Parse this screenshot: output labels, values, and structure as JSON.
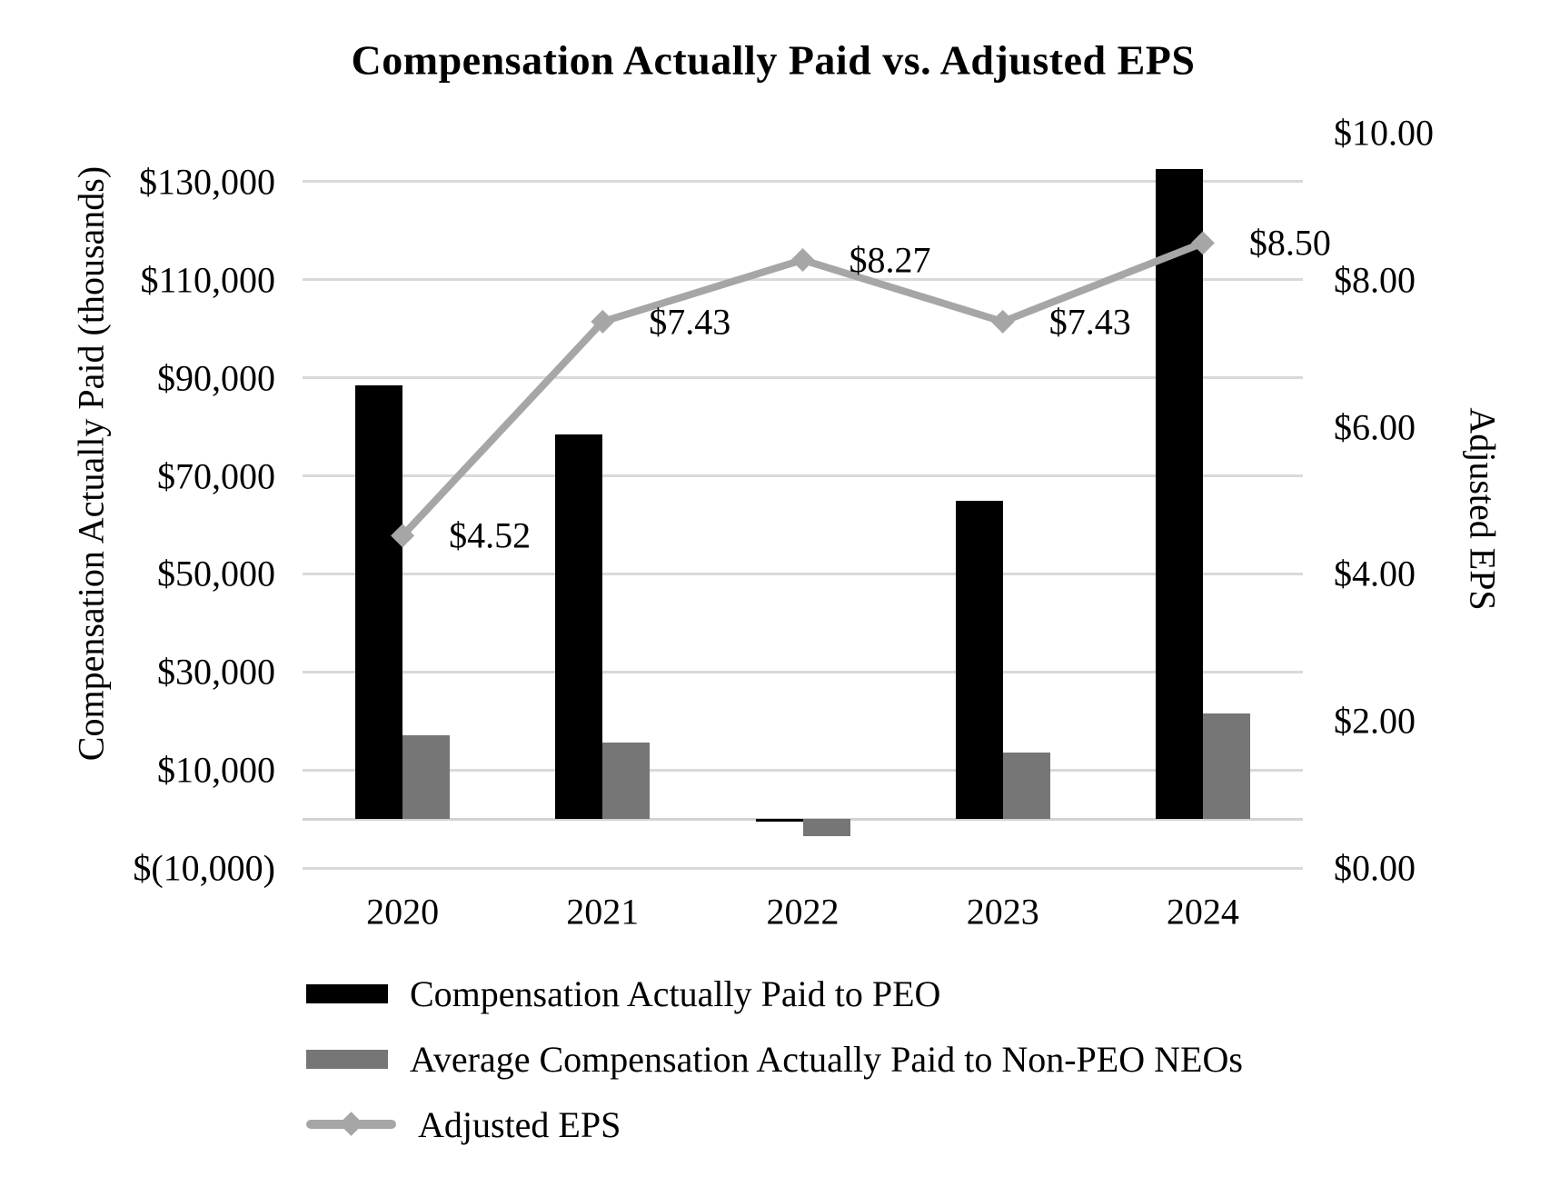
{
  "chart_data": {
    "type": "combo",
    "title": "Compensation Actually Paid vs. Adjusted EPS",
    "categories": [
      "2020",
      "2021",
      "2022",
      "2023",
      "2024"
    ],
    "series": [
      {
        "key": "peo",
        "name": "Compensation Actually Paid to PEO",
        "type": "bar",
        "axis": "left",
        "color": "#000000",
        "values": [
          88500,
          78500,
          -600,
          65000,
          132500
        ]
      },
      {
        "key": "non-peo-neos",
        "name": "Average Compensation Actually Paid to Non-PEO NEOs",
        "type": "bar",
        "axis": "left",
        "color": "#767676",
        "values": [
          17000,
          15500,
          -3600,
          13500,
          21500
        ]
      },
      {
        "key": "adjusted-eps",
        "name": "Adjusted EPS",
        "type": "line",
        "axis": "right",
        "color": "#a6a6a6",
        "values": [
          4.52,
          7.43,
          8.27,
          7.43,
          8.5
        ],
        "point_labels": [
          "$4.52",
          "$7.43",
          "$8.27",
          "$7.43",
          "$8.50"
        ]
      }
    ],
    "left_axis": {
      "title": "Compensation Actually Paid (thousands)",
      "min": -10000,
      "max": 140000,
      "ticks": [
        {
          "value": 130000,
          "label": "$130,000"
        },
        {
          "value": 110000,
          "label": "$110,000"
        },
        {
          "value": 90000,
          "label": "$90,000"
        },
        {
          "value": 70000,
          "label": "$70,000"
        },
        {
          "value": 50000,
          "label": "$50,000"
        },
        {
          "value": 30000,
          "label": "$30,000"
        },
        {
          "value": 10000,
          "label": "$10,000"
        },
        {
          "value": -10000,
          "label": "$(10,000)"
        }
      ]
    },
    "right_axis": {
      "title": "Adjusted EPS",
      "min": 0,
      "max": 10,
      "ticks": [
        {
          "value": 10,
          "label": "$10.00"
        },
        {
          "value": 8,
          "label": "$8.00"
        },
        {
          "value": 6,
          "label": "$6.00"
        },
        {
          "value": 4,
          "label": "$4.00"
        },
        {
          "value": 2,
          "label": "$2.00"
        },
        {
          "value": 0,
          "label": "$0.00"
        }
      ]
    },
    "gridlines": true,
    "legend_position": "bottom-left"
  },
  "colors": {
    "background": "#ffffff",
    "gridline": "#d9d9d9",
    "axis_line": "#d2d2d2",
    "text": "#000000"
  }
}
